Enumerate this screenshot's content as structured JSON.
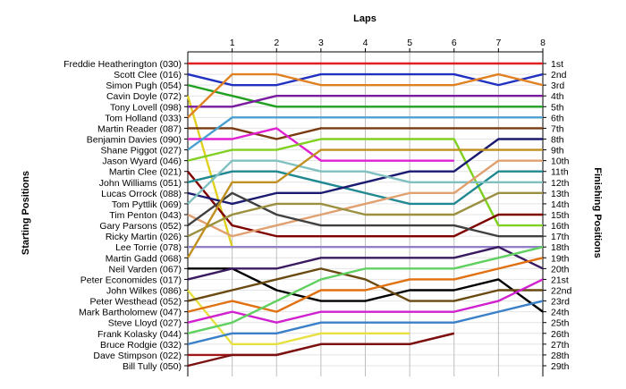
{
  "chart_data": {
    "type": "line",
    "title": "",
    "top_axis_title": "Laps",
    "left_axis_title": "Starting Positions",
    "right_axis_title": "Finishing Positions",
    "x": [
      0,
      1,
      2,
      3,
      4,
      5,
      6,
      7,
      8
    ],
    "x_tick_labels": [
      "1",
      "2",
      "3",
      "4",
      "5",
      "6",
      "7",
      "8"
    ],
    "xlim": [
      0,
      8
    ],
    "ylim": [
      1,
      29
    ],
    "y_inverted": true,
    "grid": true,
    "position_labels": [
      "1st",
      "2nd",
      "3rd",
      "4th",
      "5th",
      "6th",
      "7th",
      "8th",
      "9th",
      "10th",
      "11th",
      "12th",
      "13th",
      "14th",
      "15th",
      "16th",
      "17th",
      "18th",
      "19th",
      "20th",
      "21st",
      "22nd",
      "23rd",
      "24th",
      "25th",
      "26th",
      "27th",
      "28th",
      "29th"
    ],
    "series": [
      {
        "name": "Freddie Heatherington (030)",
        "color": "#e02020",
        "values": [
          1,
          1,
          1,
          1,
          1,
          1,
          1,
          1,
          1
        ]
      },
      {
        "name": "Scott Clee (016)",
        "color": "#2030c0",
        "values": [
          2,
          3,
          3,
          2,
          2,
          2,
          2,
          3,
          2
        ]
      },
      {
        "name": "Simon Pugh (054)",
        "color": "#20a020",
        "values": [
          3,
          4,
          5,
          5,
          5,
          5,
          5,
          5,
          5
        ]
      },
      {
        "name": "Cavin Doyle (072)",
        "color": "#e0d020",
        "values": [
          4,
          18,
          18,
          null,
          null,
          null,
          null,
          null,
          null
        ]
      },
      {
        "name": "Tony Lovell (098)",
        "color": "#7a1aa0",
        "values": [
          5,
          5,
          4,
          4,
          4,
          4,
          4,
          4,
          4
        ]
      },
      {
        "name": "Tom Holland (033)",
        "color": "#e08020",
        "values": [
          6,
          2,
          2,
          3,
          3,
          3,
          3,
          2,
          3
        ]
      },
      {
        "name": "Martin Reader (087)",
        "color": "#7a3a10",
        "values": [
          7,
          7,
          8,
          7,
          7,
          7,
          7,
          7,
          7
        ]
      },
      {
        "name": "Benjamin Davies (090)",
        "color": "#e020d0",
        "values": [
          8,
          8,
          7,
          10,
          10,
          10,
          10,
          null,
          null
        ]
      },
      {
        "name": "Shane Piggot (027)",
        "color": "#4aa0d0",
        "values": [
          9,
          6,
          6,
          6,
          6,
          6,
          6,
          6,
          6
        ]
      },
      {
        "name": "Jason Wyard (046)",
        "color": "#80d020",
        "values": [
          10,
          9,
          9,
          8,
          8,
          8,
          8,
          16,
          16
        ]
      },
      {
        "name": "Martin Clee (021)",
        "color": "#800000",
        "values": [
          11,
          16,
          17,
          17,
          17,
          17,
          17,
          15,
          15
        ]
      },
      {
        "name": "John Williams (051)",
        "color": "#208890",
        "values": [
          12,
          11,
          11,
          12,
          13,
          14,
          14,
          11,
          11
        ]
      },
      {
        "name": "Lucas Orrock (088)",
        "color": "#1a1a70",
        "values": [
          13,
          14,
          13,
          13,
          12,
          11,
          11,
          8,
          8
        ]
      },
      {
        "name": "Tom Pyttlik (069)",
        "color": "#80c0c0",
        "values": [
          14,
          10,
          10,
          11,
          11,
          12,
          12,
          12,
          12
        ]
      },
      {
        "name": "Tim Penton (043)",
        "color": "#e0a070",
        "values": [
          15,
          17,
          16,
          15,
          14,
          13,
          13,
          10,
          10
        ]
      },
      {
        "name": "Gary Parsons (052)",
        "color": "#404040",
        "values": [
          16,
          13,
          15,
          16,
          16,
          16,
          16,
          17,
          17
        ]
      },
      {
        "name": "Ricky Martin (026)",
        "color": "#9a9040",
        "values": [
          17,
          15,
          14,
          14,
          15,
          15,
          15,
          13,
          13
        ]
      },
      {
        "name": "Lee Torrie (078)",
        "color": "#9080c8",
        "values": [
          18,
          18,
          18,
          18,
          18,
          18,
          18,
          18,
          18
        ]
      },
      {
        "name": "Martin Gadd (068)",
        "color": "#c09020",
        "values": [
          19,
          12,
          12,
          9,
          9,
          9,
          9,
          9,
          9
        ]
      },
      {
        "name": "Neil Varden (067)",
        "color": "#000000",
        "values": [
          20,
          20,
          22,
          23,
          23,
          22,
          22,
          21,
          24
        ]
      },
      {
        "name": "Peter Economides (017)",
        "color": "#3a1a60",
        "values": [
          21,
          20,
          20,
          19,
          19,
          19,
          19,
          18,
          20
        ]
      },
      {
        "name": "John Wilkes (086)",
        "color": "#e8e040",
        "values": [
          22,
          27,
          27,
          26,
          26,
          26,
          null,
          null,
          null
        ]
      },
      {
        "name": "Peter Westhead (052)",
        "color": "#6a4a10",
        "values": [
          23,
          22,
          21,
          20,
          21,
          23,
          23,
          22,
          22
        ]
      },
      {
        "name": "Mark Bartholomew (047)",
        "color": "#e07010",
        "values": [
          24,
          23,
          24,
          22,
          22,
          21,
          21,
          20,
          19
        ]
      },
      {
        "name": "Steve Lloyd (027)",
        "color": "#d020d0",
        "values": [
          25,
          24,
          25,
          24,
          24,
          24,
          24,
          23,
          21
        ]
      },
      {
        "name": "Frank Kolasky (044)",
        "color": "#60d060",
        "values": [
          26,
          25,
          23,
          21,
          20,
          20,
          20,
          19,
          18
        ]
      },
      {
        "name": "Bruce Rodgie (032)",
        "color": "#3a80c8",
        "values": [
          27,
          26,
          26,
          25,
          25,
          25,
          25,
          24,
          23
        ]
      },
      {
        "name": "Dave Stimpson (022)",
        "color": "#a01818",
        "values": [
          28,
          28,
          28,
          27,
          27,
          27,
          26,
          null,
          null
        ]
      },
      {
        "name": "Bill Tully (050)",
        "color": "#7a1010",
        "values": [
          29,
          28,
          28,
          27,
          27,
          27,
          26,
          null,
          null
        ]
      }
    ]
  }
}
